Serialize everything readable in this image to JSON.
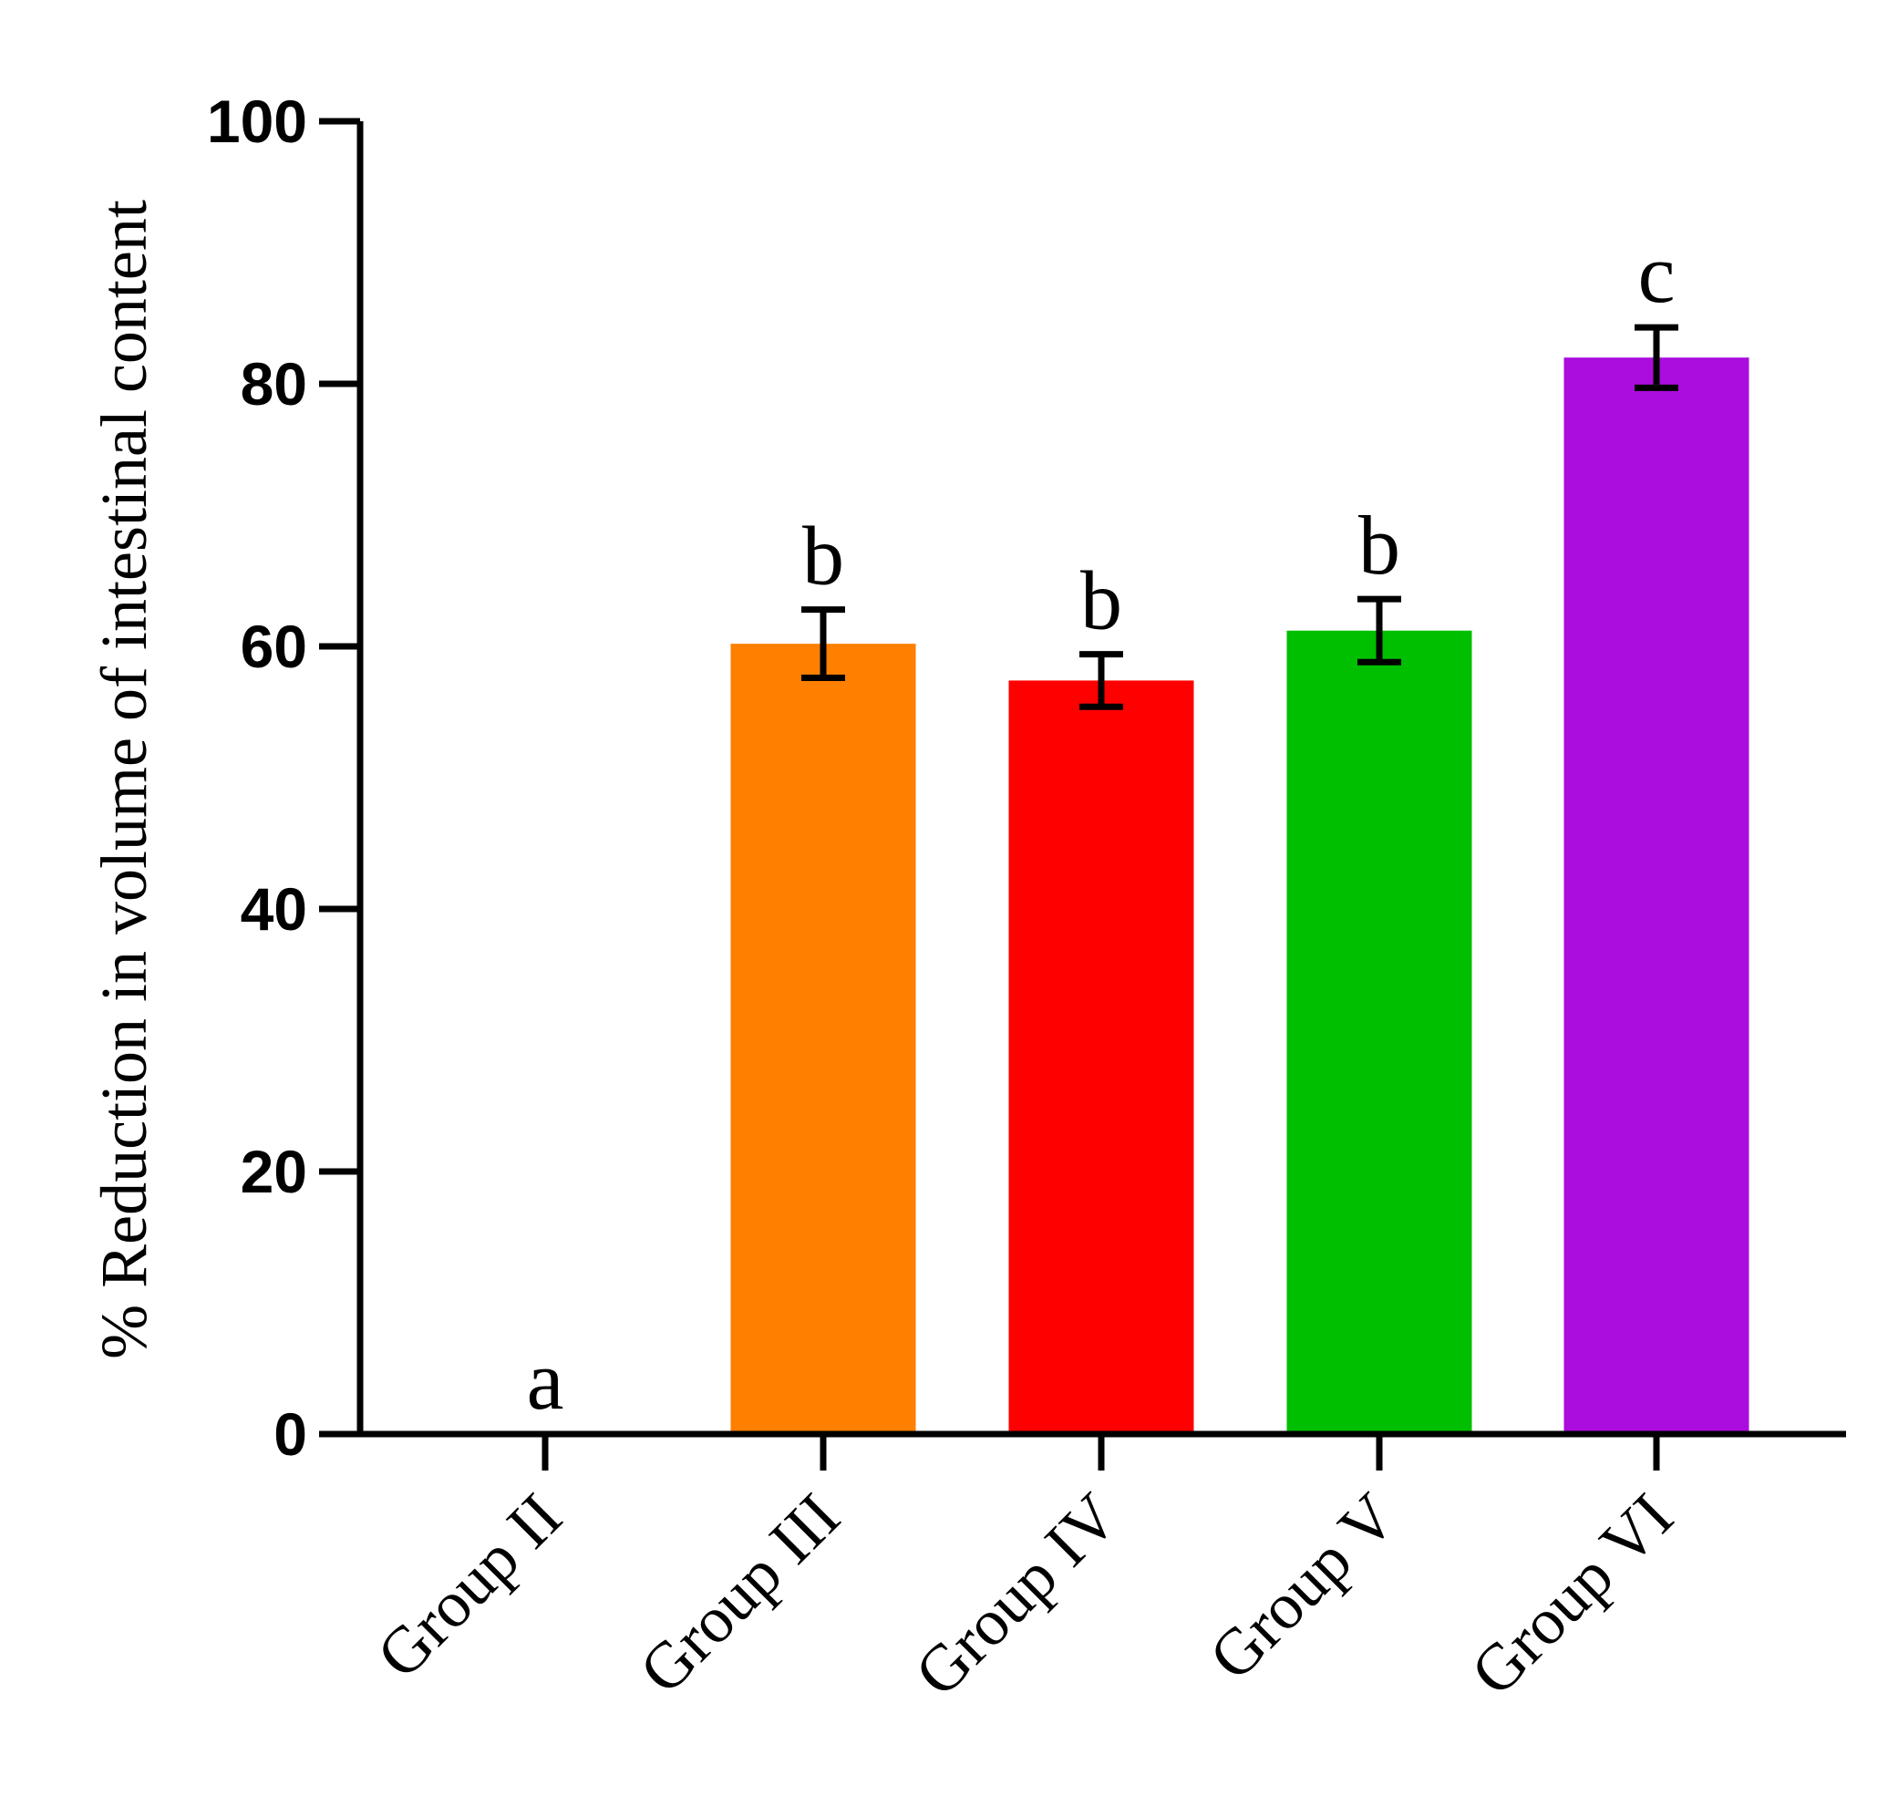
{
  "chart_data": {
    "type": "bar",
    "title": "",
    "xlabel": "",
    "ylabel": "% Reduction in volume of intestinal content",
    "ylim": [
      0,
      100
    ],
    "yticks": [
      "0",
      "20",
      "40",
      "60",
      "80",
      "100"
    ],
    "grid": false,
    "legend": "none",
    "categories": [
      "Group II",
      "Group III",
      "Group IV",
      "Group V",
      "Group VI"
    ],
    "values": [
      0,
      60.2,
      57.4,
      61.2,
      82.0
    ],
    "errors": [
      0,
      2.6,
      2.0,
      2.4,
      2.3
    ],
    "significance": [
      "a",
      "b",
      "b",
      "b",
      "c"
    ],
    "colors": [
      "#ffffff",
      "#ff7f00",
      "#ff0000",
      "#00bf00",
      "#aa0ddd"
    ]
  }
}
